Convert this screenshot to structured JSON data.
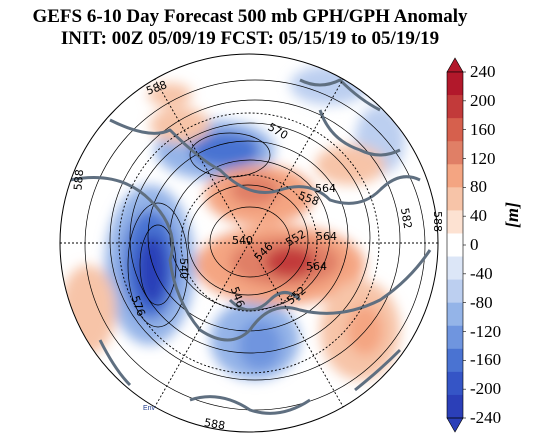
{
  "title": {
    "line1": "GEFS 6-10 Day Forecast 500 mb GPH/GPH Anomaly",
    "line2": "INIT: 00Z 05/09/19   FCST: 05/15/19 to 05/19/19"
  },
  "colorbar": {
    "unit": "[m]",
    "ticks": [
      "240",
      "200",
      "160",
      "120",
      "80",
      "40",
      "0",
      "-40",
      "-80",
      "-120",
      "-160",
      "-200",
      "-240"
    ],
    "colors": [
      "#b2182b",
      "#c23a3a",
      "#d6604d",
      "#e07f66",
      "#f4a582",
      "#f7c4a8",
      "#fde2d2",
      "#ffffff",
      "#dce6f7",
      "#bccff0",
      "#94b4e8",
      "#6f95df",
      "#4a73d2",
      "#3555c6",
      "#2b3fb8"
    ]
  },
  "contour_labels": [
    "588",
    "570",
    "564",
    "558",
    "582",
    "588",
    "540",
    "546",
    "552",
    "564",
    "564",
    "546",
    "552",
    "540",
    "576",
    "588",
    "588"
  ],
  "credit": "Env",
  "colors": {
    "coast": "#5f6f80",
    "contour": "#000000"
  }
}
